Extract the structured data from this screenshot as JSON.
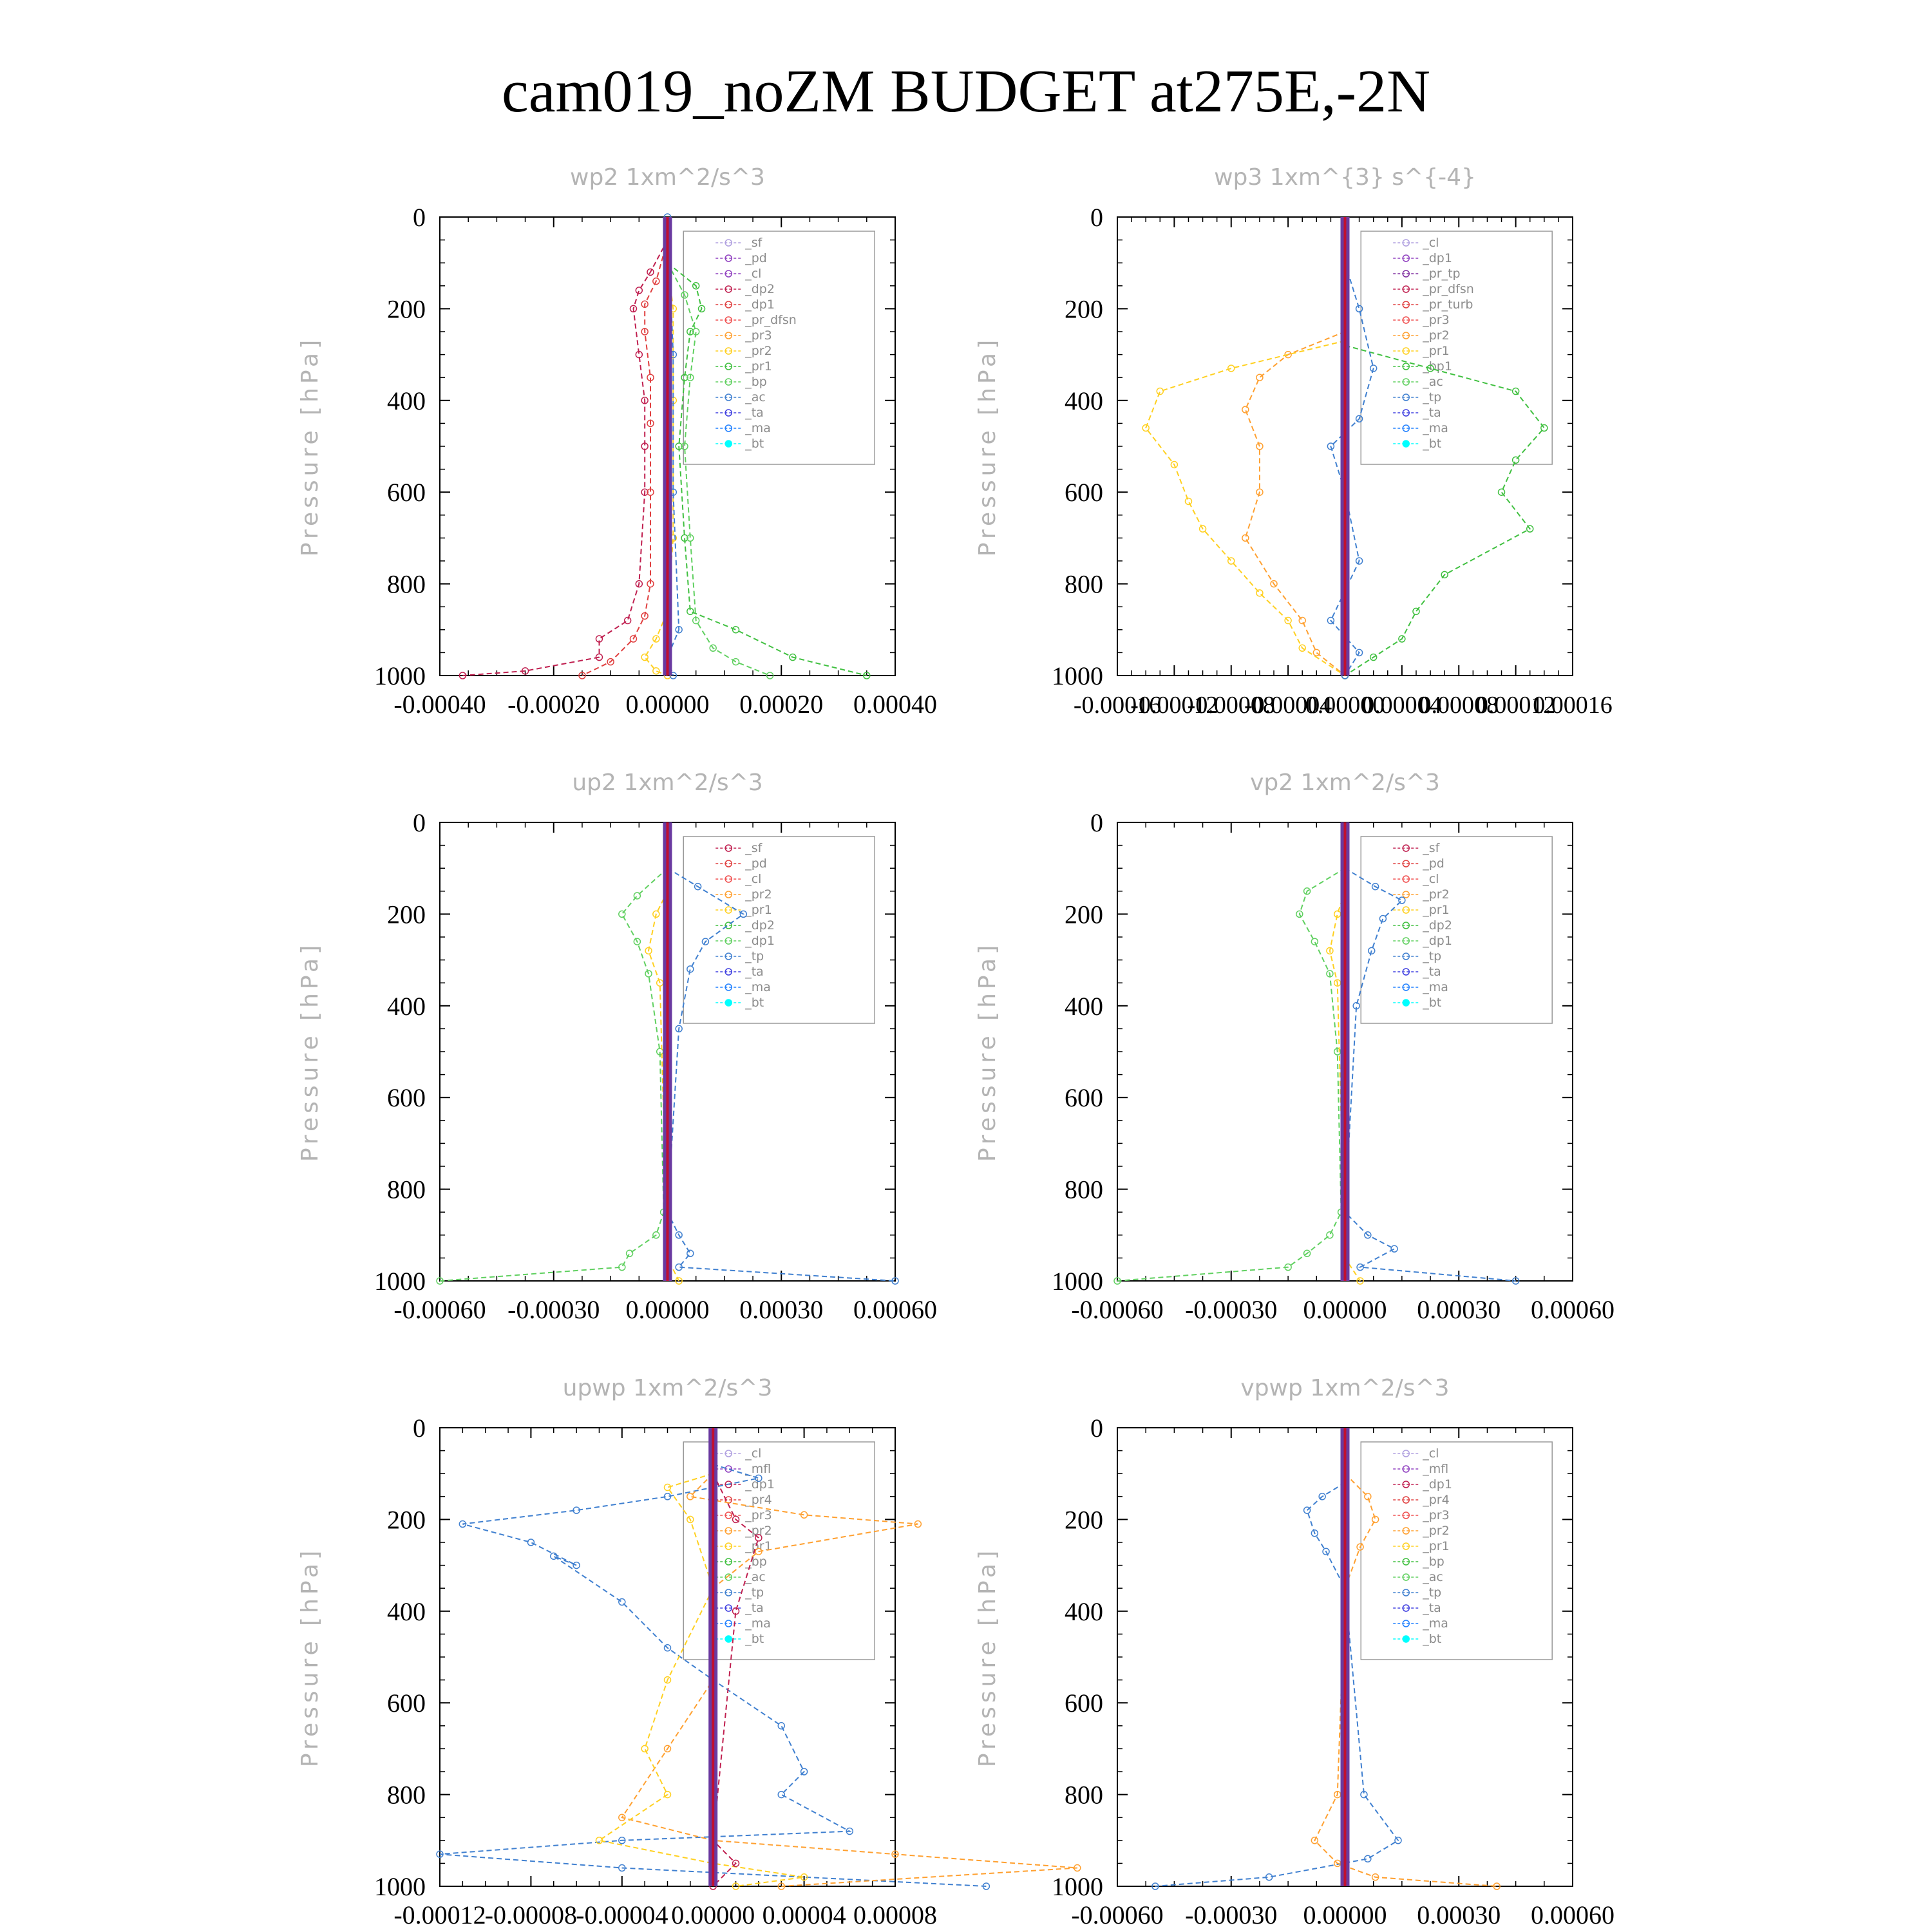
{
  "figure_title": "cam019_noZM  BUDGET at275E,-2N",
  "chart_data": [
    {
      "type": "line",
      "title": "wp2   1xm^2/s^3",
      "ylabel": "Pressure [hPa]",
      "ylim": [
        1000,
        0
      ],
      "xlim": [
        -0.0004,
        0.0004
      ],
      "xticks": [
        "-0.00040",
        "-0.00020",
        "0.00000",
        "0.00020",
        "0.00040"
      ],
      "yticks": [
        "0",
        "200",
        "400",
        "600",
        "800",
        "1000"
      ],
      "legend": [
        "_sf",
        "_pd",
        "_cl",
        "_dp2",
        "_dp1",
        "_pr_dfsn",
        "_pr3",
        "_pr2",
        "_pr1",
        "_bp",
        "_ac",
        "_ta",
        "_ma",
        "_bt"
      ],
      "legend_position": "top-right",
      "colors": [
        "#b0a0e0",
        "#9040c0",
        "#9040c0",
        "#c02050",
        "#e04040",
        "#f05050",
        "#ffa030",
        "#ffd020",
        "#40c040",
        "#60d060",
        "#4080d0",
        "#4040e0",
        "#2080ff",
        "#00ffff"
      ],
      "series": [
        {
          "name": "_dp2",
          "x": [
            0,
            -3e-05,
            -5e-05,
            -6e-05,
            -5e-05,
            -4e-05,
            -4e-05,
            -4e-05,
            -5e-05,
            -7e-05,
            -0.00012,
            -0.00012,
            -0.00025,
            -0.00036
          ],
          "y": [
            50,
            120,
            160,
            200,
            300,
            400,
            500,
            600,
            800,
            880,
            920,
            960,
            990,
            1000
          ]
        },
        {
          "name": "_dp1",
          "x": [
            0,
            -2e-05,
            -4e-05,
            -4e-05,
            -3e-05,
            -3e-05,
            -3e-05,
            -3e-05,
            -4e-05,
            -6e-05,
            -0.0001,
            -0.00015
          ],
          "y": [
            50,
            140,
            190,
            250,
            350,
            450,
            600,
            800,
            870,
            920,
            970,
            1000
          ]
        },
        {
          "name": "_pr2",
          "x": [
            0,
            1e-05,
            1e-05,
            1e-05,
            0.0,
            -2e-05,
            -4e-05,
            -2e-05,
            0.0
          ],
          "y": [
            100,
            200,
            400,
            700,
            860,
            920,
            960,
            990,
            1000
          ]
        },
        {
          "name": "_pr1",
          "x": [
            0,
            5e-05,
            6e-05,
            4e-05,
            3e-05,
            2e-05,
            3e-05,
            4e-05,
            0.00012,
            0.00022,
            0.00035
          ],
          "y": [
            100,
            150,
            200,
            250,
            350,
            500,
            700,
            860,
            900,
            960,
            1000
          ]
        },
        {
          "name": "_bp",
          "x": [
            0,
            3e-05,
            5e-05,
            4e-05,
            3e-05,
            4e-05,
            5e-05,
            8e-05,
            0.00012,
            0.00018
          ],
          "y": [
            100,
            170,
            250,
            350,
            500,
            700,
            880,
            940,
            970,
            1000
          ]
        },
        {
          "name": "_ac",
          "x": [
            0,
            1e-05,
            1e-05,
            2e-05,
            0.0,
            1e-05
          ],
          "y": [
            0,
            300,
            600,
            900,
            960,
            1000
          ]
        },
        {
          "name": "_bt",
          "x": [
            0,
            0
          ],
          "y": [
            0,
            1000
          ]
        }
      ]
    },
    {
      "type": "line",
      "title": "wp3   1xm^{3} s^{-4}",
      "ylabel": "Pressure [hPa]",
      "ylim": [
        1000,
        0
      ],
      "xlim": [
        -0.00016,
        0.00016
      ],
      "xticks": [
        "-0.00016",
        "-0.00012",
        "-0.00008",
        "-0.00004",
        "0.00000",
        "0.00004",
        "0.00008",
        "0.00012",
        "0.00016"
      ],
      "yticks": [
        "0",
        "200",
        "400",
        "600",
        "800",
        "1000"
      ],
      "legend": [
        "_cl",
        "_dp1",
        "_pr_tp",
        "_pr_dfsn",
        "_pr_turb",
        "_pr3",
        "_pr2",
        "_pr1",
        "_bp1",
        "_ac",
        "_tp",
        "_ta",
        "_ma",
        "_bt"
      ],
      "legend_position": "top-right",
      "colors": [
        "#b0a0e0",
        "#9040c0",
        "#8030a0",
        "#c02050",
        "#e04040",
        "#f05050",
        "#ffa030",
        "#ffd020",
        "#40c040",
        "#60d060",
        "#4080d0",
        "#4040e0",
        "#2080ff",
        "#00ffff"
      ],
      "series": [
        {
          "name": "_pr2",
          "x": [
            0,
            -4e-05,
            -6e-05,
            -7e-05,
            -6e-05,
            -6e-05,
            -7e-05,
            -5e-05,
            -3e-05,
            -2e-05,
            0.0
          ],
          "y": [
            250,
            300,
            350,
            420,
            500,
            600,
            700,
            800,
            880,
            950,
            1000
          ]
        },
        {
          "name": "_pr1",
          "x": [
            0,
            -8e-05,
            -0.00013,
            -0.00014,
            -0.00012,
            -0.00011,
            -0.0001,
            -8e-05,
            -6e-05,
            -4e-05,
            -3e-05,
            0.0
          ],
          "y": [
            270,
            330,
            380,
            460,
            540,
            620,
            680,
            750,
            820,
            880,
            940,
            1000
          ]
        },
        {
          "name": "_bp1",
          "x": [
            0,
            6e-05,
            0.00012,
            0.00014,
            0.00012,
            0.00011,
            0.00013,
            7e-05,
            5e-05,
            4e-05,
            2e-05,
            0.0
          ],
          "y": [
            280,
            330,
            380,
            460,
            530,
            600,
            680,
            780,
            860,
            920,
            960,
            1000
          ]
        },
        {
          "name": "_tp",
          "x": [
            0,
            1e-05,
            2e-05,
            1e-05,
            -1e-05,
            0.0,
            1e-05,
            -1e-05,
            1e-05,
            0.0
          ],
          "y": [
            100,
            200,
            330,
            440,
            500,
            600,
            750,
            880,
            950,
            1000
          ]
        },
        {
          "name": "_bt",
          "x": [
            0,
            0
          ],
          "y": [
            0,
            1000
          ]
        }
      ]
    },
    {
      "type": "line",
      "title": "up2   1xm^2/s^3",
      "ylabel": "Pressure [hPa]",
      "ylim": [
        1000,
        0
      ],
      "xlim": [
        -0.0006,
        0.0006
      ],
      "xticks": [
        "-0.00060",
        "-0.00030",
        "0.00000",
        "0.00030",
        "0.00060"
      ],
      "yticks": [
        "0",
        "200",
        "400",
        "600",
        "800",
        "1000"
      ],
      "legend": [
        "_sf",
        "_pd",
        "_cl",
        "_pr2",
        "_pr1",
        "_dp2",
        "_dp1",
        "_tp",
        "_ta",
        "_ma",
        "_bt"
      ],
      "legend_position": "top-right",
      "colors": [
        "#c02050",
        "#e04040",
        "#f05050",
        "#ffa030",
        "#ffd020",
        "#40c040",
        "#60d060",
        "#4080d0",
        "#4040e0",
        "#2080ff",
        "#00ffff"
      ],
      "series": [
        {
          "name": "_dp1",
          "x": [
            0,
            -8e-05,
            -0.00012,
            -8e-05,
            -5e-05,
            -2e-05,
            -1e-05,
            -3e-05,
            -0.0001,
            -0.00012,
            -0.0006
          ],
          "y": [
            100,
            160,
            200,
            260,
            330,
            500,
            850,
            900,
            940,
            970,
            1000
          ]
        },
        {
          "name": "_tp",
          "x": [
            0,
            8e-05,
            0.0002,
            0.0001,
            6e-05,
            3e-05,
            0.0,
            3e-05,
            6e-05,
            3e-05,
            0.0006
          ],
          "y": [
            100,
            140,
            200,
            260,
            320,
            450,
            850,
            900,
            940,
            970,
            1000
          ]
        },
        {
          "name": "_pr1",
          "x": [
            0,
            -3e-05,
            -5e-05,
            -2e-05,
            0.0,
            3e-05
          ],
          "y": [
            150,
            200,
            280,
            350,
            950,
            1000
          ]
        },
        {
          "name": "_bt",
          "x": [
            0,
            0
          ],
          "y": [
            0,
            1000
          ]
        }
      ]
    },
    {
      "type": "line",
      "title": "vp2   1xm^2/s^3",
      "ylabel": "Pressure [hPa]",
      "ylim": [
        1000,
        0
      ],
      "xlim": [
        -0.0006,
        0.0006
      ],
      "xticks": [
        "-0.00060",
        "-0.00030",
        "0.00000",
        "0.00030",
        "0.00060"
      ],
      "yticks": [
        "0",
        "200",
        "400",
        "600",
        "800",
        "1000"
      ],
      "legend": [
        "_sf",
        "_pd",
        "_cl",
        "_pr2",
        "_pr1",
        "_dp2",
        "_dp1",
        "_tp",
        "_ta",
        "_ma",
        "_bt"
      ],
      "legend_position": "top-right",
      "colors": [
        "#c02050",
        "#e04040",
        "#f05050",
        "#ffa030",
        "#ffd020",
        "#40c040",
        "#60d060",
        "#4080d0",
        "#4040e0",
        "#2080ff",
        "#00ffff"
      ],
      "series": [
        {
          "name": "_dp1",
          "x": [
            0,
            -0.0001,
            -0.00012,
            -8e-05,
            -4e-05,
            -2e-05,
            -1e-05,
            -4e-05,
            -0.0001,
            -0.00015,
            -0.0006
          ],
          "y": [
            100,
            150,
            200,
            260,
            330,
            500,
            850,
            900,
            940,
            970,
            1000
          ]
        },
        {
          "name": "_tp",
          "x": [
            0,
            8e-05,
            0.00015,
            0.0001,
            7e-05,
            3e-05,
            0.0,
            6e-05,
            0.00013,
            4e-05,
            0.00045
          ],
          "y": [
            100,
            140,
            170,
            210,
            280,
            400,
            850,
            900,
            930,
            970,
            1000
          ]
        },
        {
          "name": "_pr1",
          "x": [
            0,
            -2e-05,
            -4e-05,
            -2e-05,
            0.0,
            4e-05
          ],
          "y": [
            150,
            200,
            280,
            350,
            950,
            1000
          ]
        },
        {
          "name": "_bt",
          "x": [
            0,
            0
          ],
          "y": [
            0,
            1000
          ]
        }
      ]
    },
    {
      "type": "line",
      "title": "upwp    1xm^2/s^3",
      "ylabel": "Pressure [hPa]",
      "ylim": [
        1000,
        0
      ],
      "xlim": [
        -0.00012,
        8e-05
      ],
      "xticks": [
        "-0.00012",
        "-0.00008",
        "-0.00004",
        "0.00000",
        "0.00004",
        "0.00008"
      ],
      "yticks": [
        "0",
        "200",
        "400",
        "600",
        "800",
        "1000"
      ],
      "legend": [
        "_cl",
        "_mfl",
        "_dp1",
        "_pr4",
        "_pr3",
        "_pr2",
        "_pr1",
        "_bp",
        "_ac",
        "_tp",
        "_ta",
        "_ma",
        "_bt"
      ],
      "legend_position": "top-right",
      "colors": [
        "#b0a0e0",
        "#9040c0",
        "#c02050",
        "#e04040",
        "#f05050",
        "#ffa030",
        "#ffd020",
        "#40c040",
        "#60d060",
        "#4080d0",
        "#4040e0",
        "#2080ff",
        "#00ffff"
      ],
      "series": [
        {
          "name": "_tp",
          "x": [
            0,
            2e-05,
            -2e-05,
            -6e-05,
            -0.00011,
            -8e-05,
            -6e-05,
            -7e-05,
            -4e-05,
            -2e-05,
            0.0,
            3e-05,
            4e-05,
            3e-05,
            6e-05,
            -4e-05,
            -0.00012,
            -4e-05,
            0.00012
          ],
          "y": [
            80,
            110,
            150,
            180,
            210,
            250,
            300,
            280,
            380,
            480,
            550,
            650,
            750,
            800,
            880,
            900,
            930,
            960,
            1000
          ]
        },
        {
          "name": "_pr2",
          "x": [
            0,
            -1e-05,
            4e-05,
            9e-05,
            2e-05,
            0.0,
            0.0,
            -2e-05,
            -4e-05,
            0.0,
            8e-05,
            0.00016,
            3e-05
          ],
          "y": [
            100,
            150,
            190,
            210,
            270,
            350,
            550,
            700,
            850,
            900,
            930,
            960,
            1000
          ]
        },
        {
          "name": "_pr1",
          "x": [
            0,
            -2e-05,
            -1e-05,
            0.0,
            -2e-05,
            -3e-05,
            -2e-05,
            -5e-05,
            0.0,
            4e-05,
            1e-05
          ],
          "y": [
            100,
            130,
            200,
            350,
            550,
            700,
            800,
            900,
            950,
            980,
            1000
          ]
        },
        {
          "name": "_dp1",
          "x": [
            0,
            1e-05,
            2e-05,
            1e-05,
            0.0,
            1e-05,
            0.0
          ],
          "y": [
            100,
            200,
            240,
            400,
            900,
            950,
            1000
          ]
        },
        {
          "name": "_bt",
          "x": [
            0,
            0
          ],
          "y": [
            0,
            1000
          ]
        }
      ]
    },
    {
      "type": "line",
      "title": "vpwp    1xm^2/s^3",
      "ylabel": "Pressure [hPa]",
      "ylim": [
        1000,
        0
      ],
      "xlim": [
        -0.0006,
        0.0006
      ],
      "xticks": [
        "-0.00060",
        "-0.00030",
        "0.00000",
        "0.00030",
        "0.00060"
      ],
      "yticks": [
        "0",
        "200",
        "400",
        "600",
        "800",
        "1000"
      ],
      "legend": [
        "_cl",
        "_mfl",
        "_dp1",
        "_pr4",
        "_pr3",
        "_pr2",
        "_pr1",
        "_bp",
        "_ac",
        "_tp",
        "_ta",
        "_ma",
        "_bt"
      ],
      "legend_position": "top-right",
      "colors": [
        "#b0a0e0",
        "#9040c0",
        "#c02050",
        "#e04040",
        "#f05050",
        "#ffa030",
        "#ffd020",
        "#40c040",
        "#60d060",
        "#4080d0",
        "#4040e0",
        "#2080ff",
        "#00ffff"
      ],
      "series": [
        {
          "name": "_tp",
          "x": [
            0,
            -6e-05,
            -0.0001,
            -8e-05,
            -5e-05,
            0.0,
            5e-05,
            0.00014,
            6e-05,
            -0.0002,
            -0.0005
          ],
          "y": [
            120,
            150,
            180,
            230,
            270,
            350,
            800,
            900,
            940,
            980,
            1000
          ]
        },
        {
          "name": "_pr2",
          "x": [
            0,
            6e-05,
            8e-05,
            4e-05,
            0.0,
            -2e-05,
            -8e-05,
            -2e-05,
            8e-05,
            0.0004
          ],
          "y": [
            100,
            150,
            200,
            260,
            350,
            800,
            900,
            950,
            980,
            1000
          ]
        },
        {
          "name": "_bt",
          "x": [
            0,
            0
          ],
          "y": [
            0,
            1000
          ]
        }
      ]
    }
  ]
}
